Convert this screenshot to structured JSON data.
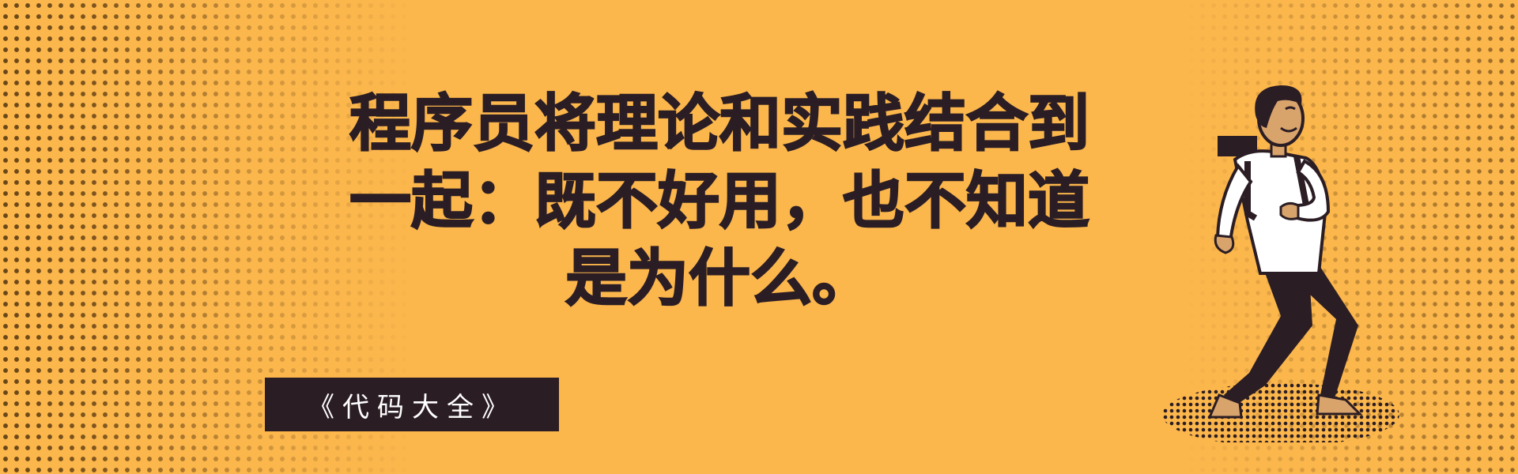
{
  "headline": {
    "lines": [
      "程序员将理论和实践结合到",
      "一起：既不好用，也不知道",
      "是为什么。"
    ]
  },
  "book_badge": {
    "label": "《代码大全》"
  },
  "colors": {
    "background": "#FBB64C",
    "ink": "#2b1d24",
    "dots": "#5a3a12",
    "badge_text": "#ffffff"
  },
  "illustration": {
    "icon": "hiker-with-backpack-icon"
  }
}
